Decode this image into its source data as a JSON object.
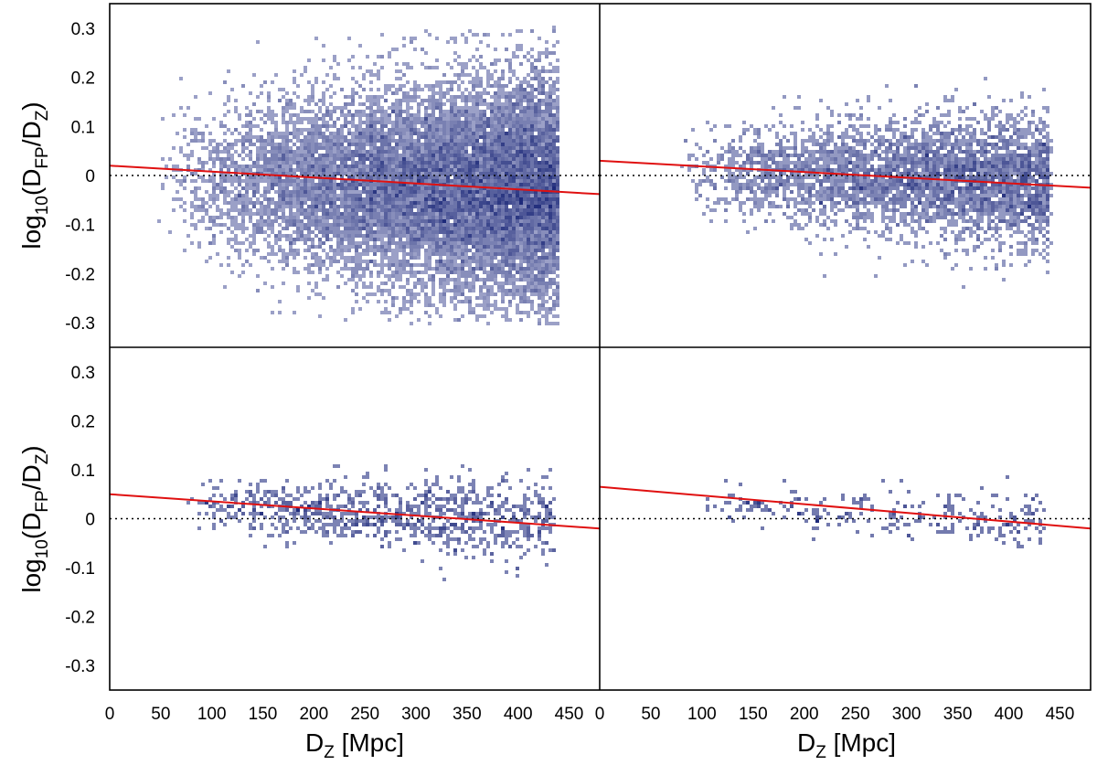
{
  "chart_data": {
    "type": "heatmap",
    "layout": "2x2 grid",
    "x_axis": {
      "label": "D",
      "label_subscript": "Z",
      "label_suffix": " [Mpc]",
      "range": [
        0,
        480
      ],
      "ticks": [
        0,
        50,
        100,
        150,
        200,
        250,
        300,
        350,
        400,
        450
      ],
      "tick_labels": [
        "0",
        "50",
        "100",
        "150",
        "200",
        "250",
        "300",
        "350",
        "400",
        "450"
      ]
    },
    "y_axis": {
      "label_prefix": "log",
      "label_base": "10",
      "label_open": "(D",
      "label_num_sub": "FP",
      "label_slash": "/D",
      "label_den_sub": "Z",
      "label_close": ")",
      "range": [
        -0.35,
        0.35
      ],
      "ticks": [
        0.3,
        0.2,
        0.1,
        0,
        -0.1,
        -0.2,
        -0.3
      ],
      "tick_labels": [
        "0.3",
        "0.2",
        "0.1",
        "0",
        "-0.1",
        "-0.2",
        "-0.3"
      ]
    },
    "reference_line": {
      "y": 0,
      "style": "dotted",
      "color": "#000000"
    },
    "colors": {
      "density_low": "#c4c7e0",
      "density_high": "#1e2a7a",
      "fit_line": "#e01010",
      "axes": "#000000"
    },
    "panels": [
      {
        "id": "top-left",
        "fit_line": {
          "x": [
            0,
            480
          ],
          "y": [
            0.02,
            -0.038
          ]
        },
        "density": {
          "x_min": 45,
          "x_max": 440,
          "y_center": -0.02,
          "y_sigma": 0.1,
          "y_span": [
            -0.3,
            0.3
          ],
          "points": 14000,
          "bias_x": 2.2,
          "bias_y": 1.4
        }
      },
      {
        "id": "top-right",
        "fit_line": {
          "x": [
            0,
            480
          ],
          "y": [
            0.03,
            -0.025
          ]
        },
        "density": {
          "x_min": 80,
          "x_max": 440,
          "y_center": 0.0,
          "y_sigma": 0.06,
          "y_span": [
            -0.24,
            0.2
          ],
          "points": 4200,
          "bias_x": 1.8,
          "bias_y": 1.2
        }
      },
      {
        "id": "bottom-left",
        "fit_line": {
          "x": [
            0,
            480
          ],
          "y": [
            0.05,
            -0.02
          ]
        },
        "density": {
          "x_min": 75,
          "x_max": 435,
          "y_center": 0.01,
          "y_sigma": 0.035,
          "y_span": [
            -0.13,
            0.11
          ],
          "points": 950,
          "bias_x": 1.4,
          "bias_y": 1.0
        }
      },
      {
        "id": "bottom-right",
        "fit_line": {
          "x": [
            0,
            480
          ],
          "y": [
            0.065,
            -0.02
          ]
        },
        "density": {
          "x_min": 90,
          "x_max": 435,
          "y_center": 0.015,
          "y_sigma": 0.025,
          "y_span": [
            -0.06,
            0.1
          ],
          "points": 260,
          "bias_x": 1.3,
          "bias_y": 1.0
        }
      }
    ]
  }
}
